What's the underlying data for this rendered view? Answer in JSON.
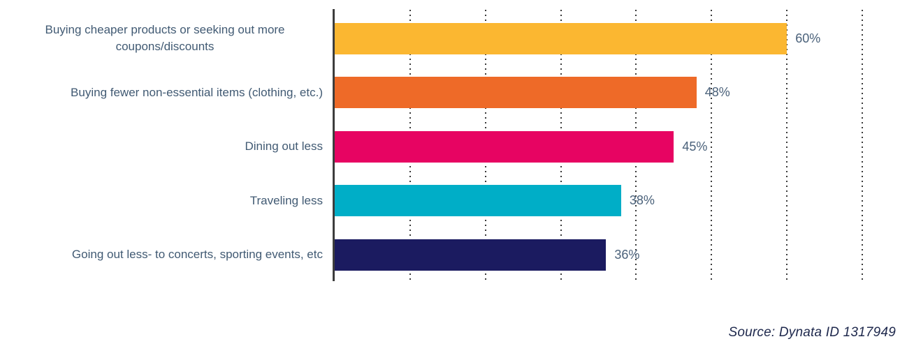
{
  "chart_data": {
    "type": "bar",
    "orientation": "horizontal",
    "title": "",
    "xlabel": "",
    "ylabel": "",
    "categories": [
      "Buying cheaper products or seeking out more coupons/discounts",
      "Buying fewer non-essential items (clothing, etc.)",
      "Dining out less",
      "Traveling less",
      "Going out less- to concerts, sporting events, etc"
    ],
    "values": [
      60,
      48,
      45,
      38,
      36
    ],
    "value_labels": [
      "60%",
      "48%",
      "45%",
      "38%",
      "36%"
    ],
    "bar_colors": [
      "#FBB731",
      "#EE6A28",
      "#E70462",
      "#00AEC7",
      "#1B1B60"
    ],
    "xlim": [
      0,
      75
    ],
    "gridlines_pct": [
      10,
      20,
      30,
      40,
      50,
      60,
      70
    ],
    "grid": "vertical-dotted",
    "legend": "none"
  },
  "source_note": "Source: Dynata ID 1317949",
  "colors": {
    "background": "#ffffff",
    "category_text": "#415a73",
    "value_text": "#4a617a",
    "axis_line": "#3d3d3d",
    "gridline_dots": "#3a3a3a",
    "source_text": "#202a4e"
  }
}
